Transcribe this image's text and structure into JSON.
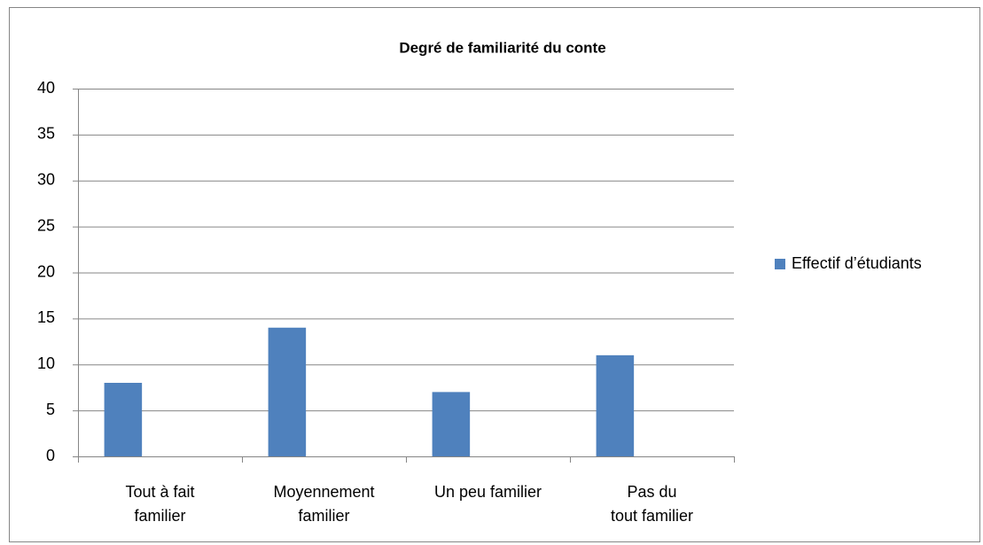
{
  "chart_data": {
    "type": "bar",
    "title": "Degré de familiarité du conte",
    "categories": [
      "Tout à fait\nfamilier",
      "Moyennement\nfamilier",
      "Un peu familier",
      "Pas du\ntout  familier"
    ],
    "series": [
      {
        "name": "Effectif d’étudiants",
        "color": "#4f81bd",
        "values": [
          8,
          14,
          7,
          11
        ]
      }
    ],
    "ylim": [
      0,
      40
    ],
    "yticks": [
      0,
      5,
      10,
      15,
      20,
      25,
      30,
      35,
      40
    ],
    "grid": true,
    "legend": "right"
  }
}
